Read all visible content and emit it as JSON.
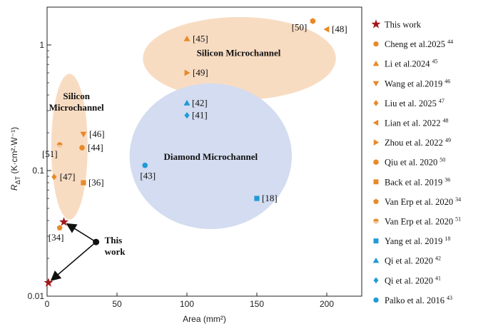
{
  "chart_data": {
    "type": "scatter",
    "xlabel": "Area (mm²)",
    "ylabel_main": "R",
    "ylabel_sub": "ΔT",
    "ylabel_unit": " (K·cm²·W⁻¹)",
    "xlim": [
      0,
      225
    ],
    "ylim": [
      0.01,
      2
    ],
    "yscale": "log",
    "x_ticks": [
      0,
      50,
      100,
      150,
      200
    ],
    "y_ticks": [
      {
        "value": 0.01,
        "label": "0.01"
      },
      {
        "value": 0.1,
        "label": "0.1"
      },
      {
        "value": 1,
        "label": "1"
      }
    ],
    "colors": {
      "orange": "#e8892a",
      "blue": "#1f9ad6",
      "red": "#a4161a",
      "orange_fill": "#f8dcc2",
      "blue_fill": "#d3dcf0"
    },
    "regions": [
      {
        "label_lines": [
          "Silicon Microchannel"
        ],
        "color": "#f8dcc2",
        "cx": 137.5,
        "cy": 0.78,
        "rx": 69,
        "ry_decades": 0.33,
        "label_x": 137,
        "label_y": 0.86
      },
      {
        "label_lines": [
          "Silicon",
          "Microchannel"
        ],
        "color": "#f8dcc2",
        "cx": 16,
        "cy": 0.155,
        "rx": 13,
        "ry_decades": 0.58,
        "label_x": 21,
        "label_y": 0.35
      },
      {
        "label_lines": [
          "Diamond Microchannel"
        ],
        "color": "#d3dcf0",
        "cx": 117,
        "cy": 0.13,
        "rx": 58,
        "ry_decades": 0.58,
        "label_x": 117,
        "label_y": 0.128
      }
    ],
    "series": [
      {
        "name": "This work",
        "marker": "star",
        "color": "#a4161a",
        "ref": "",
        "points": [
          {
            "x": 1,
            "y": 0.0128,
            "label": ""
          },
          {
            "x": 12,
            "y": 0.039,
            "label": ""
          }
        ]
      },
      {
        "name": "Cheng et al.2025",
        "ref": "44",
        "marker": "circle",
        "color": "#e8892a",
        "points": [
          {
            "x": 25,
            "y": 0.152,
            "label": "[44]"
          }
        ]
      },
      {
        "name": "Li et al.2024",
        "ref": "45",
        "marker": "triangle-up",
        "color": "#e8892a",
        "points": [
          {
            "x": 100,
            "y": 1.12,
            "label": "[45]"
          }
        ]
      },
      {
        "name": "Wang et al.2019",
        "ref": "46",
        "marker": "triangle-down",
        "color": "#e8892a",
        "points": [
          {
            "x": 26,
            "y": 0.195,
            "label": "[46]"
          }
        ]
      },
      {
        "name": "Liu et al. 2025",
        "ref": "47",
        "marker": "diamond",
        "color": "#e8892a",
        "points": [
          {
            "x": 5,
            "y": 0.089,
            "label": "[47]"
          }
        ]
      },
      {
        "name": "Lian et al. 2022",
        "ref": "48",
        "marker": "triangle-left",
        "color": "#e8892a",
        "points": [
          {
            "x": 200,
            "y": 1.33,
            "label": "[48]"
          }
        ]
      },
      {
        "name": "Zhou et al. 2022",
        "ref": "49",
        "marker": "triangle-right",
        "color": "#e8892a",
        "points": [
          {
            "x": 100,
            "y": 0.6,
            "label": "[49]"
          }
        ]
      },
      {
        "name": "Qiu et al. 2020",
        "ref": "50",
        "marker": "hexagon",
        "color": "#e8892a",
        "points": [
          {
            "x": 190,
            "y": 1.55,
            "label": "[50]"
          }
        ]
      },
      {
        "name": "Back et al. 2019",
        "ref": "36",
        "marker": "square",
        "color": "#e8892a",
        "points": [
          {
            "x": 26,
            "y": 0.08,
            "label": "[36]"
          }
        ]
      },
      {
        "name": "Van Erp et al. 2020",
        "ref": "34",
        "marker": "pentagon",
        "color": "#e8892a",
        "points": [
          {
            "x": 9,
            "y": 0.035,
            "label": "[34]"
          }
        ]
      },
      {
        "name": "Van Erp et al. 2020",
        "ref": "51",
        "marker": "circle-half",
        "color": "#e8892a",
        "points": [
          {
            "x": 9,
            "y": 0.16,
            "label": "[51]"
          }
        ]
      },
      {
        "name": "Yang et al. 2019",
        "ref": "18",
        "marker": "square",
        "color": "#1f9ad6",
        "points": [
          {
            "x": 150,
            "y": 0.06,
            "label": "[18]"
          }
        ]
      },
      {
        "name": "Qi et al. 2020",
        "ref": "42",
        "marker": "triangle-up",
        "color": "#1f9ad6",
        "points": [
          {
            "x": 100,
            "y": 0.345,
            "label": "[42]"
          }
        ]
      },
      {
        "name": "Qi et al. 2020",
        "ref": "41",
        "marker": "diamond",
        "color": "#1f9ad6",
        "points": [
          {
            "x": 100,
            "y": 0.275,
            "label": "[41]"
          }
        ]
      },
      {
        "name": "Palko et al. 2016",
        "ref": "43",
        "marker": "circle",
        "color": "#1f9ad6",
        "points": [
          {
            "x": 70,
            "y": 0.11,
            "label": "[43]"
          }
        ]
      }
    ],
    "annotation": {
      "text_lines": [
        "This",
        "work"
      ],
      "hub": {
        "x": 35,
        "y": 0.027
      },
      "arrow_targets": [
        {
          "x": 1,
          "y": 0.0128
        },
        {
          "x": 12,
          "y": 0.039
        }
      ]
    }
  }
}
